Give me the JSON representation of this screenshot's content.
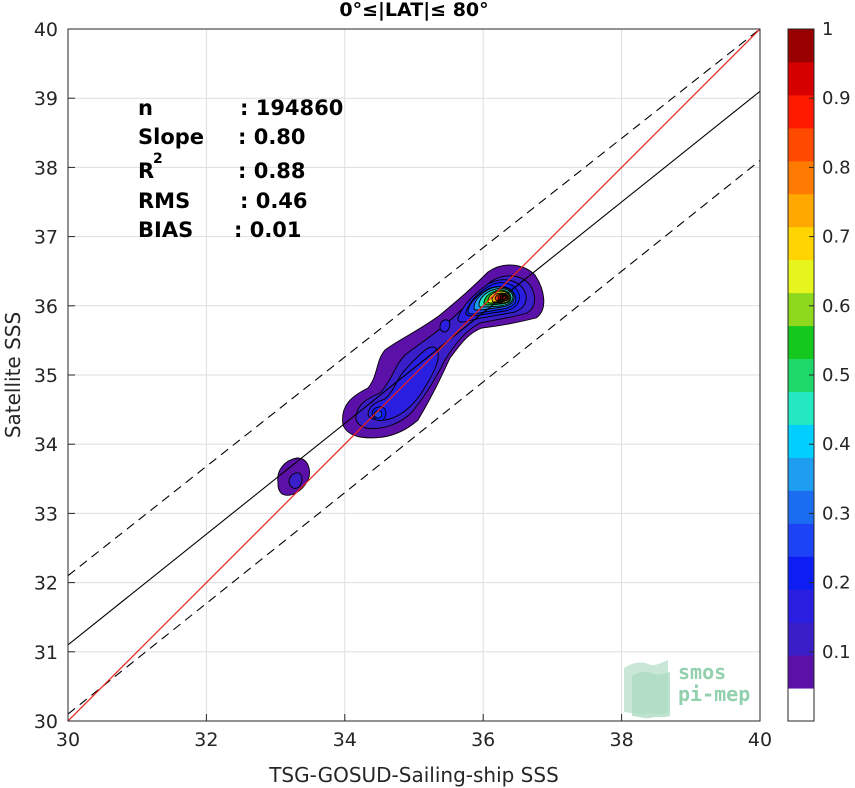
{
  "chart_data": {
    "type": "heatmap",
    "title": "0°≤|LAT|≤ 80°",
    "xlabel": "TSG-GOSUD-Sailing-ship SSS",
    "ylabel": "Satellite SSS",
    "xlim": [
      30,
      40
    ],
    "ylim": [
      30,
      40
    ],
    "xticks": [
      "30",
      "32",
      "34",
      "36",
      "38",
      "40"
    ],
    "yticks": [
      "30",
      "31",
      "32",
      "33",
      "34",
      "35",
      "36",
      "37",
      "38",
      "39",
      "40"
    ],
    "grid": true,
    "stats": [
      {
        "label": "n",
        "value": ": 194860"
      },
      {
        "label": "Slope",
        "value": ": 0.80"
      },
      {
        "label": "R",
        "sup": "2",
        "value": ": 0.88"
      },
      {
        "label": "RMS",
        "value": ": 0.46"
      },
      {
        "label": "BIAS",
        "value": ": 0.01"
      }
    ],
    "lines": {
      "identity": {
        "from": [
          30,
          30
        ],
        "to": [
          40,
          40
        ],
        "color": "#e8231e"
      },
      "fit": {
        "from": [
          30,
          31.1
        ],
        "to": [
          40,
          39.1
        ],
        "color": "#000000"
      },
      "upper_bound": {
        "from": [
          30,
          32.1
        ],
        "to": [
          40,
          40
        ],
        "color": "#000000",
        "dashed": true
      },
      "lower_bound": {
        "from": [
          30,
          30.1
        ],
        "to": [
          40,
          38.1
        ],
        "color": "#000000",
        "dashed": true
      }
    },
    "density_peaks": [
      {
        "x": 36.35,
        "y": 36.12,
        "max": 1.0
      },
      {
        "x": 34.55,
        "y": 34.4,
        "max": 0.35
      },
      {
        "x": 33.25,
        "y": 33.5,
        "max": 0.15
      }
    ],
    "colorbar": {
      "range": [
        0,
        1
      ],
      "ticks": [
        "0.1",
        "0.2",
        "0.3",
        "0.4",
        "0.5",
        "0.6",
        "0.7",
        "0.8",
        "0.9",
        "1"
      ],
      "levels": [
        "#ffffff",
        "#5b11a8",
        "#3a1ec8",
        "#2a1ee0",
        "#0d1ef5",
        "#1c43f5",
        "#1a6df0",
        "#1e9ef0",
        "#00cfff",
        "#23e8c0",
        "#1fd86a",
        "#15c81e",
        "#8ed81e",
        "#e6f51e",
        "#ffd400",
        "#ffa800",
        "#ff7a00",
        "#ff4a00",
        "#ff1a00",
        "#d60000",
        "#990000"
      ]
    }
  },
  "logo": {
    "line1": "smos",
    "line2": "pi-mep"
  }
}
